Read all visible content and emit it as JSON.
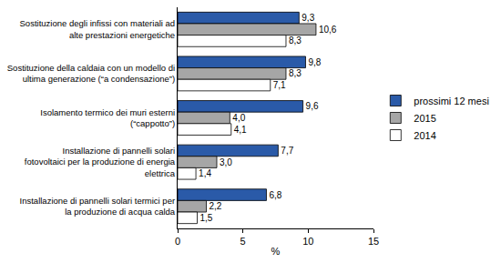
{
  "chart_data": {
    "type": "bar",
    "orientation": "horizontal",
    "categories": [
      "Sostituzione degli infissi con materiali ad alte prestazioni energetiche",
      "Sostituzione della caldaia con un modello di ultima generazione (“a condensazione”)",
      "Isolamento termico dei muri esterni (“cappotto”)",
      "Installazione di pannelli solari fotovoltaici per la produzione di energia elettrica",
      "Installazione di pannelli solari termici per la produzione di acqua calda"
    ],
    "series": [
      {
        "name": "prossimi 12 mesi",
        "color": "#2a5aa8",
        "values": [
          9.3,
          9.8,
          9.6,
          7.7,
          6.8
        ],
        "value_labels": [
          "9,3",
          "9,8",
          "9,6",
          "7,7",
          "6,8"
        ]
      },
      {
        "name": "2015",
        "color": "#a6a6a6",
        "values": [
          10.6,
          8.3,
          4.0,
          3.0,
          2.2
        ],
        "value_labels": [
          "10,6",
          "8,3",
          "4,0",
          "3,0",
          "2,2"
        ]
      },
      {
        "name": "2014",
        "color": "#ffffff",
        "values": [
          8.3,
          7.1,
          4.1,
          1.4,
          1.5
        ],
        "value_labels": [
          "8,3",
          "7,1",
          "4,1",
          "1,4",
          "1,5"
        ]
      }
    ],
    "x_label": "%",
    "xlim": [
      0,
      15
    ],
    "xticks": [
      0,
      5,
      10,
      15
    ],
    "grid": false,
    "legend": "right",
    "data_labels": true
  }
}
